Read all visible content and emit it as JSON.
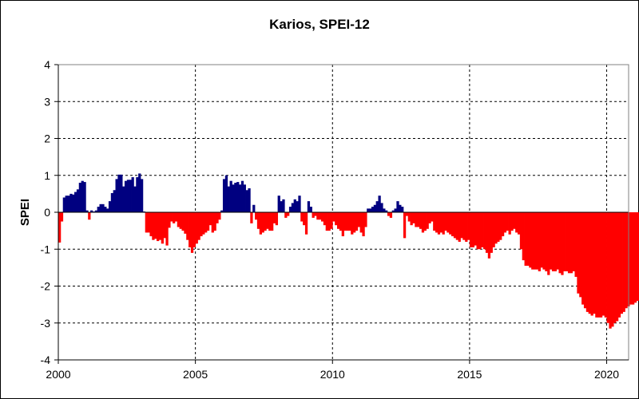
{
  "chart_data": {
    "type": "bar",
    "title": "Karios, SPEI-12",
    "xlabel": "",
    "ylabel": "SPEI",
    "xlim": [
      2000,
      2020.8
    ],
    "ylim": [
      -4,
      4
    ],
    "x_ticks": [
      "2000",
      "2005",
      "2010",
      "2015",
      "2020"
    ],
    "y_ticks": [
      "4",
      "3",
      "2",
      "1",
      "0",
      "-1",
      "-2",
      "-3",
      "-4"
    ],
    "grid": "dashed",
    "colors": {
      "positive": "#000080",
      "negative": "#ff0000"
    },
    "series": [
      {
        "values": [
          -0.82,
          -0.25,
          0.4,
          0.45,
          0.45,
          0.5,
          0.48,
          0.55,
          0.62,
          0.8,
          0.85,
          0.82,
          0.05,
          -0.2,
          0.05,
          0.02,
          0.05,
          0.15,
          0.22,
          0.22,
          0.15,
          0.1,
          0.3,
          0.52,
          0.6,
          0.9,
          1.02,
          1.02,
          0.7,
          0.85,
          0.88,
          0.88,
          0.95,
          0.7,
          0.95,
          1.05,
          0.9,
          0.02,
          -0.55,
          -0.55,
          -0.65,
          -0.75,
          -0.72,
          -0.78,
          -0.75,
          -0.85,
          -0.7,
          -0.9,
          -0.42,
          -0.25,
          -0.3,
          -0.25,
          -0.4,
          -0.45,
          -0.5,
          -0.58,
          -0.75,
          -0.95,
          -1.1,
          -0.95,
          -0.85,
          -0.75,
          -0.65,
          -0.6,
          -0.55,
          -0.5,
          -0.35,
          -0.55,
          -0.5,
          -0.3,
          -0.2,
          0.05,
          0.9,
          1.0,
          0.7,
          0.85,
          0.75,
          0.8,
          0.82,
          0.75,
          0.85,
          0.75,
          0.6,
          0.65,
          -0.3,
          0.2,
          -0.2,
          -0.45,
          -0.6,
          -0.55,
          -0.5,
          -0.45,
          -0.5,
          -0.5,
          -0.3,
          -0.35,
          0.45,
          0.3,
          0.35,
          -0.15,
          -0.1,
          0.15,
          0.25,
          0.35,
          0.3,
          0.45,
          -0.25,
          -0.35,
          -0.6,
          0.3,
          0.15,
          -0.15,
          -0.1,
          -0.2,
          -0.2,
          -0.25,
          -0.35,
          -0.5,
          -0.5,
          -0.45,
          -0.25,
          -0.35,
          -0.45,
          -0.5,
          -0.65,
          -0.5,
          -0.5,
          -0.5,
          -0.6,
          -0.55,
          -0.5,
          -0.4,
          -0.55,
          -0.65,
          -0.4,
          0.1,
          0.1,
          0.15,
          0.2,
          0.3,
          0.45,
          0.25,
          0.1,
          0.05,
          -0.1,
          -0.15,
          0.05,
          0.1,
          0.3,
          0.2,
          0.15,
          -0.7,
          -0.1,
          -0.25,
          -0.35,
          -0.3,
          -0.4,
          -0.4,
          -0.45,
          -0.55,
          -0.5,
          -0.45,
          -0.3,
          -0.25,
          -0.5,
          -0.55,
          -0.6,
          -0.55,
          -0.6,
          -0.5,
          -0.55,
          -0.6,
          -0.65,
          -0.7,
          -0.75,
          -0.8,
          -0.7,
          -0.75,
          -0.8,
          -0.75,
          -0.95,
          -0.95,
          -0.9,
          -1.0,
          -1.0,
          -0.95,
          -1.0,
          -1.1,
          -1.25,
          -1.1,
          -0.95,
          -0.85,
          -0.8,
          -0.75,
          -0.65,
          -0.55,
          -0.5,
          -0.6,
          -0.5,
          -0.45,
          -0.55,
          -0.6,
          -1.0,
          -1.3,
          -1.45,
          -1.45,
          -1.5,
          -1.55,
          -1.55,
          -1.55,
          -1.6,
          -1.5,
          -1.55,
          -1.6,
          -1.7,
          -1.55,
          -1.6,
          -1.6,
          -1.55,
          -1.65,
          -1.7,
          -1.6,
          -1.6,
          -1.65,
          -1.65,
          -1.6,
          -1.75,
          -2.2,
          -2.3,
          -2.5,
          -2.6,
          -2.7,
          -2.75,
          -2.8,
          -2.75,
          -2.85,
          -2.85,
          -2.85,
          -2.8,
          -2.85,
          -3.0,
          -3.15,
          -3.1,
          -3.0,
          -2.95,
          -2.85,
          -2.75,
          -2.7,
          -2.6,
          -2.55,
          -2.5,
          -2.5,
          -2.45,
          -2.4,
          -2.4
        ]
      }
    ]
  }
}
